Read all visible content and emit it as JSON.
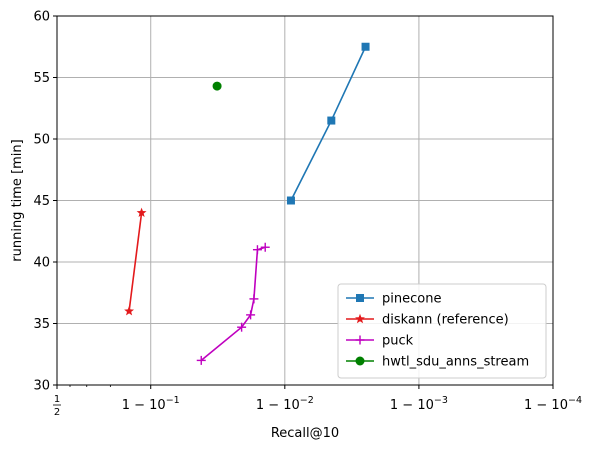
{
  "chart_data": {
    "type": "line",
    "xlabel": "Recall@10",
    "ylabel": "running time [min]",
    "x_scale": "log of (1 - recall), reversed",
    "xlim": [
      0.5,
      0.9999
    ],
    "ylim": [
      30,
      60
    ],
    "grid": true,
    "legend_position": "lower-right",
    "x_ticks": [
      {
        "value": 0.5,
        "label": "1/2",
        "fraction": true
      },
      {
        "value": 0.9,
        "label": "1 − 10",
        "exponent": "−1"
      },
      {
        "value": 0.99,
        "label": "1 − 10",
        "exponent": "−2"
      },
      {
        "value": 0.999,
        "label": "1 − 10",
        "exponent": "−3"
      },
      {
        "value": 0.9999,
        "label": "1 − 10",
        "exponent": "−4"
      }
    ],
    "y_ticks": [
      30,
      35,
      40,
      45,
      50,
      55,
      60
    ],
    "series": [
      {
        "name": "pinecone",
        "color": "#1f77b4",
        "marker": "square",
        "points": [
          [
            0.991,
            45.0
          ],
          [
            0.9955,
            51.5
          ],
          [
            0.9975,
            57.5
          ]
        ]
      },
      {
        "name": "diskann (reference)",
        "color": "#e31a1c",
        "marker": "star",
        "points": [
          [
            0.855,
            36.0
          ],
          [
            0.883,
            44.0
          ]
        ]
      },
      {
        "name": "puck",
        "color": "#bf00bf",
        "marker": "plus",
        "points": [
          [
            0.958,
            32.0
          ],
          [
            0.979,
            34.7
          ],
          [
            0.982,
            35.7
          ],
          [
            0.983,
            37.0
          ],
          [
            0.984,
            41.0
          ],
          [
            0.986,
            41.2
          ]
        ]
      },
      {
        "name": "hwtl_sdu_anns_stream",
        "color": "#008000",
        "marker": "circle",
        "points": [
          [
            0.968,
            54.3
          ]
        ]
      }
    ]
  }
}
